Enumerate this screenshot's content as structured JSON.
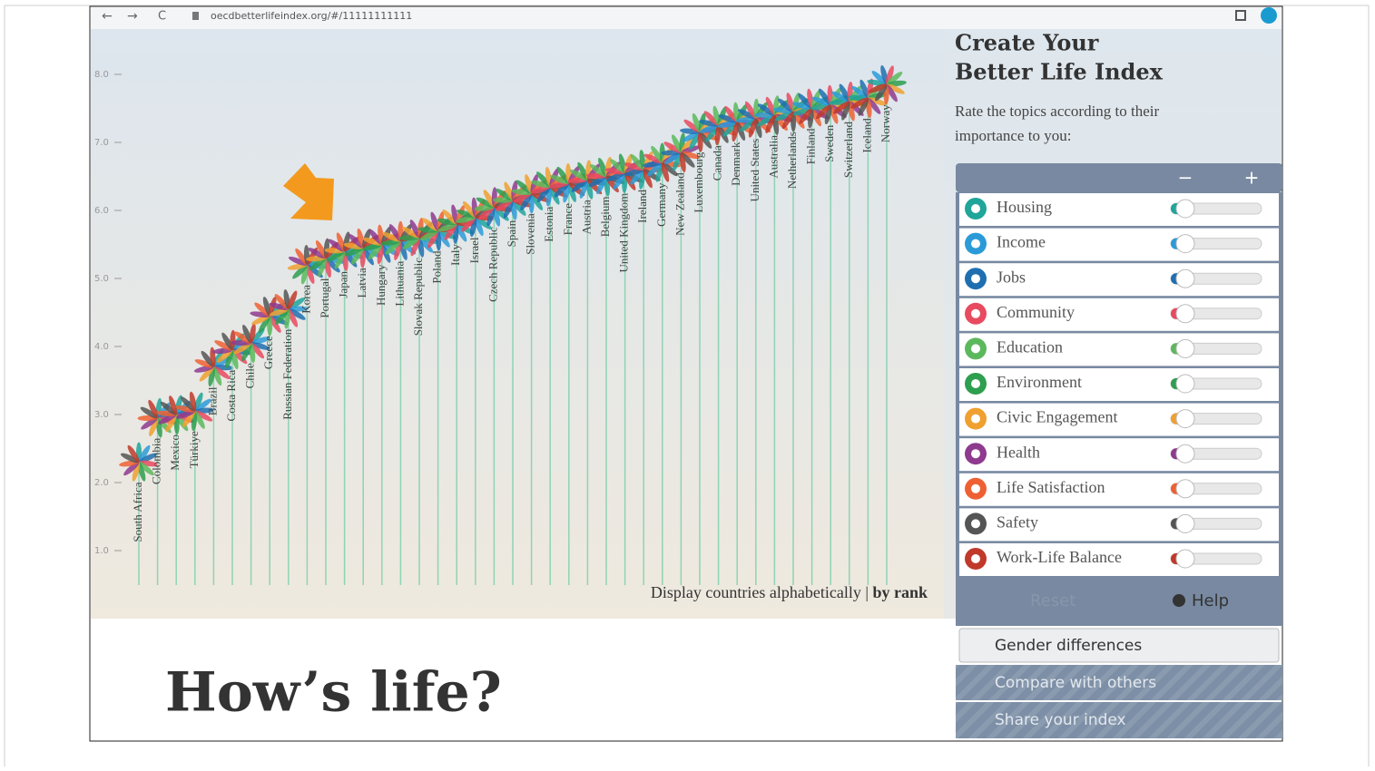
{
  "browser": {
    "url": "oecdbetterlifeindex.org/#/11111111111"
  },
  "chart_data": {
    "type": "flower",
    "categories": [
      "South Africa",
      "Colombia",
      "Mexico",
      "Türkiye",
      "Brazil",
      "Costa Rica",
      "Chile",
      "Greece",
      "Russian Federation",
      "Korea",
      "Portugal",
      "Japan",
      "Latvia",
      "Hungary",
      "Lithuania",
      "Slovak Republic",
      "Poland",
      "Italy",
      "Israel",
      "Czech Republic",
      "Spain",
      "Slovenia",
      "Estonia",
      "France",
      "Austria",
      "Belgium",
      "United Kingdom",
      "Ireland",
      "Germany",
      "New Zealand",
      "Luxembourg",
      "Canada",
      "Denmark",
      "United States",
      "Australia",
      "Netherlands",
      "Finland",
      "Sweden",
      "Switzerland",
      "Iceland",
      "Norway"
    ],
    "values": [
      2.3,
      2.95,
      3.0,
      3.05,
      3.7,
      3.95,
      4.05,
      4.45,
      4.55,
      5.2,
      5.3,
      5.4,
      5.45,
      5.5,
      5.55,
      5.6,
      5.7,
      5.8,
      5.9,
      6.05,
      6.15,
      6.25,
      6.35,
      6.4,
      6.45,
      6.5,
      6.55,
      6.6,
      6.7,
      6.85,
      7.15,
      7.25,
      7.3,
      7.35,
      7.4,
      7.45,
      7.5,
      7.55,
      7.6,
      7.65,
      7.85
    ],
    "ylim": [
      0,
      8.6
    ],
    "yticks": [
      {
        "value": 1,
        "label": "1.0"
      },
      {
        "value": 2,
        "label": "2.0"
      },
      {
        "value": 3,
        "label": "3.0"
      },
      {
        "value": 4,
        "label": "4.0"
      },
      {
        "value": 5,
        "label": "5.0"
      },
      {
        "value": 6,
        "label": "6.0"
      },
      {
        "value": 7,
        "label": "7.0"
      },
      {
        "value": 8,
        "label": "8.0"
      }
    ]
  },
  "sort": {
    "label": "Display countries alphabetically",
    "separator": "|",
    "active": "by rank"
  },
  "headline": "How’s life?",
  "panel": {
    "title_lines": [
      "Create Your",
      "Better Life Index"
    ],
    "prompt_lines": [
      "Rate the topics according to their",
      "importance to you:"
    ],
    "minus": "−",
    "plus": "+",
    "topics": [
      {
        "name": "Housing",
        "color": "#1fa59a"
      },
      {
        "name": "Income",
        "color": "#2b9bd8"
      },
      {
        "name": "Jobs",
        "color": "#1f6fb0"
      },
      {
        "name": "Community",
        "color": "#e84a5f"
      },
      {
        "name": "Education",
        "color": "#5cb85c"
      },
      {
        "name": "Environment",
        "color": "#2e9e4f"
      },
      {
        "name": "Civic Engagement",
        "color": "#f0a030"
      },
      {
        "name": "Health",
        "color": "#8e3a8e"
      },
      {
        "name": "Life Satisfaction",
        "color": "#ee6033"
      },
      {
        "name": "Safety",
        "color": "#555555"
      },
      {
        "name": "Work-Life Balance",
        "color": "#c0392b"
      }
    ],
    "reset": "Reset",
    "help": "Help",
    "gender": "Gender differences",
    "compare": "Compare with others",
    "share": "Share your index"
  }
}
